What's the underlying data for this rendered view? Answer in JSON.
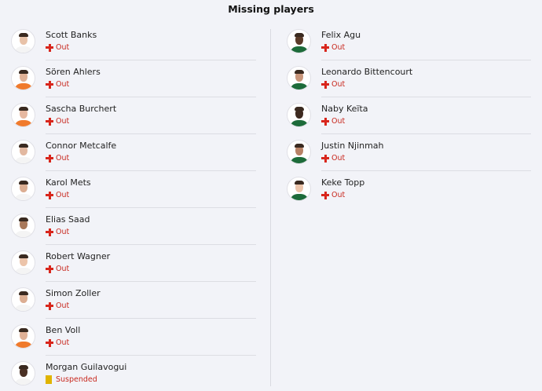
{
  "title": "Missing players",
  "columns": [
    [
      {
        "name": "Scott Banks",
        "status": "Out",
        "status_icon": "injury-cross-icon",
        "jersey": "#f4f4f4",
        "skin": "#e8c2a8"
      },
      {
        "name": "Sören Ahlers",
        "status": "Out",
        "status_icon": "injury-cross-icon",
        "jersey": "#f07a2c",
        "skin": "#e0b196"
      },
      {
        "name": "Sascha Burchert",
        "status": "Out",
        "status_icon": "injury-cross-icon",
        "jersey": "#f07a2c",
        "skin": "#e6b8a0"
      },
      {
        "name": "Connor Metcalfe",
        "status": "Out",
        "status_icon": "injury-cross-icon",
        "jersey": "#f4f4f4",
        "skin": "#e2b8a0"
      },
      {
        "name": "Karol Mets",
        "status": "Out",
        "status_icon": "injury-cross-icon",
        "jersey": "#f4f4f4",
        "skin": "#dcae92"
      },
      {
        "name": "Elias Saad",
        "status": "Out",
        "status_icon": "injury-cross-icon",
        "jersey": "#f4f4f4",
        "skin": "#a8785a"
      },
      {
        "name": "Robert Wagner",
        "status": "Out",
        "status_icon": "injury-cross-icon",
        "jersey": "#f4f4f4",
        "skin": "#ecc4aa"
      },
      {
        "name": "Simon Zoller",
        "status": "Out",
        "status_icon": "injury-cross-icon",
        "jersey": "#f4f4f4",
        "skin": "#dcae92"
      },
      {
        "name": "Ben Voll",
        "status": "Out",
        "status_icon": "injury-cross-icon",
        "jersey": "#f07a2c",
        "skin": "#e0b196"
      },
      {
        "name": "Morgan Guilavogui",
        "status": "Suspended",
        "status_icon": "yellow-card-icon",
        "jersey": "#f4f4f4",
        "skin": "#4a3024"
      }
    ],
    [
      {
        "name": "Felix Agu",
        "status": "Out",
        "status_icon": "injury-cross-icon",
        "jersey": "#1d6b3a",
        "skin": "#5a3a28"
      },
      {
        "name": "Leonardo Bittencourt",
        "status": "Out",
        "status_icon": "injury-cross-icon",
        "jersey": "#1d6b3a",
        "skin": "#c8957a"
      },
      {
        "name": "Naby Keïta",
        "status": "Out",
        "status_icon": "injury-cross-icon",
        "jersey": "#1d6b3a",
        "skin": "#3e2a20"
      },
      {
        "name": "Justin Njinmah",
        "status": "Out",
        "status_icon": "injury-cross-icon",
        "jersey": "#1d6b3a",
        "skin": "#b88266"
      },
      {
        "name": "Keke Topp",
        "status": "Out",
        "status_icon": "injury-cross-icon",
        "jersey": "#1d6b3a",
        "skin": "#ecc4aa"
      }
    ]
  ]
}
